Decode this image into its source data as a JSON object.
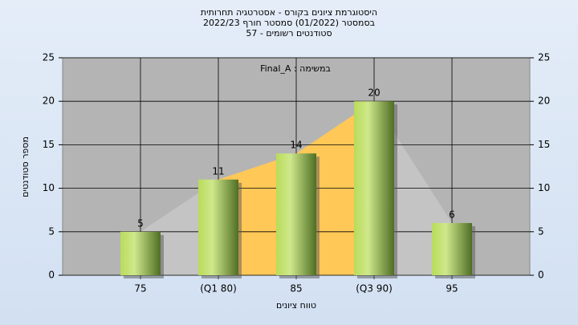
{
  "chart_data": {
    "type": "bar",
    "title": "היסטוגרמת ציונים בקורס - אסטרטגיה תחרותית",
    "subtitle": "בסמסטר  (01/2022)  סמסטר חורף  2022/23",
    "subtitle2": "סטודנטים רשומים - 57",
    "annotation": "במשימה : Final_A",
    "x_label": "טווח ציונים",
    "y_label": "מספר סטודנטים",
    "categories": [
      "75",
      "(Q1 80)",
      "85",
      "(Q3 90)",
      "95"
    ],
    "values": [
      5,
      11,
      14,
      20,
      6
    ],
    "ylim": [
      0,
      25
    ],
    "yticks": [
      0,
      5,
      10,
      15,
      20,
      25
    ],
    "y2lim": [
      0,
      25
    ],
    "y2ticks": [
      0,
      5,
      10,
      15,
      20,
      25
    ],
    "grid": true
  }
}
